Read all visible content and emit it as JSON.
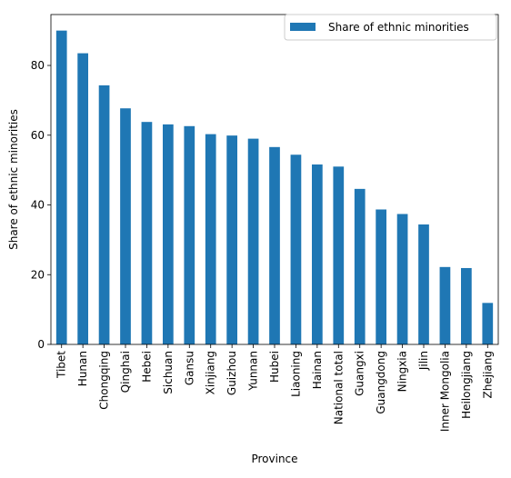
{
  "chart_data": {
    "type": "bar",
    "title": "",
    "xlabel": "Province",
    "ylabel": "Share of ethnic minorities",
    "categories": [
      "Tibet",
      "Hunan",
      "Chongqing",
      "Qinghai",
      "Hebei",
      "Sichuan",
      "Gansu",
      "Xinjiang",
      "Guizhou",
      "Yunnan",
      "Hubei",
      "Liaoning",
      "Hainan",
      "National total",
      "Guangxi",
      "Guangdong",
      "Ningxia",
      "Jilin",
      "Inner Mongolia",
      "Heilongjiang",
      "Zhejiang"
    ],
    "series": [
      {
        "name": "Share of ethnic minorities",
        "color": "#1f77b4",
        "values": [
          90.0,
          83.5,
          74.3,
          67.7,
          63.8,
          63.1,
          62.6,
          60.3,
          59.9,
          59.0,
          56.6,
          54.4,
          51.6,
          51.0,
          44.6,
          38.7,
          37.4,
          34.4,
          22.2,
          21.9,
          11.9
        ]
      }
    ],
    "ylim": [
      0,
      94.6
    ],
    "yticks": [
      "0",
      "20",
      "40",
      "60",
      "80"
    ],
    "grid": false,
    "legend_position": "top-right"
  }
}
